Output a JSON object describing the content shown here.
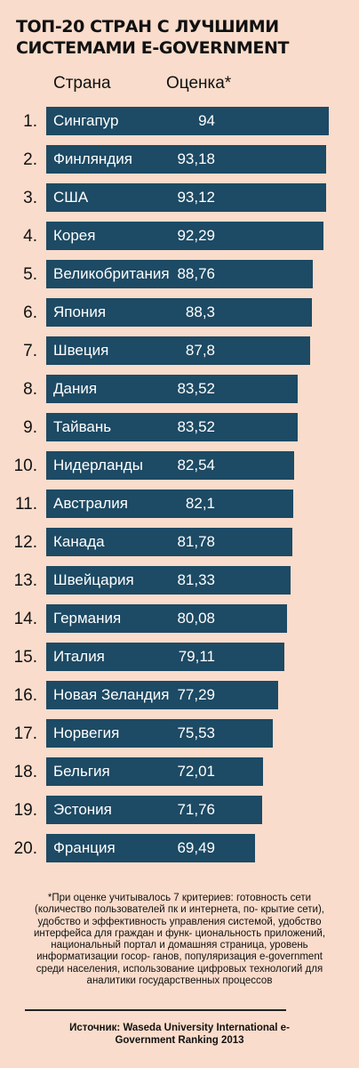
{
  "title": "ТОП-20 СТРАН С ЛУЧШИМИ СИСТЕМАМИ E-GOVERNMENT",
  "col_country": "Страна",
  "col_score": "Оценка*",
  "colors": {
    "background": "#f9dccb",
    "bar": "#1d4a64",
    "bar_text": "#ffffff"
  },
  "chart_data": {
    "type": "bar",
    "orientation": "horizontal",
    "title": "ТОП-20 СТРАН С ЛУЧШИМИ СИСТЕМАМИ E-GOVERNMENT",
    "ranks": [
      "1.",
      "2.",
      "3.",
      "4.",
      "5.",
      "6.",
      "7.",
      "8.",
      "9.",
      "10.",
      "11.",
      "12.",
      "13.",
      "14.",
      "15.",
      "16.",
      "17.",
      "18.",
      "19.",
      "20."
    ],
    "categories": [
      "Сингапур",
      "Финляндия",
      "США",
      "Корея",
      "Великобритания",
      "Япония",
      "Швеция",
      "Дания",
      "Тайвань",
      "Нидерланды",
      "Австралия",
      "Канада",
      "Швейцария",
      "Германия",
      "Италия",
      "Новая Зеландия",
      "Норвегия",
      "Бельгия",
      "Эстония",
      "Франция"
    ],
    "value_labels": [
      "94",
      "93,18",
      "93,12",
      "92,29",
      "88,76",
      "88,3",
      "87,8",
      "83,52",
      "83,52",
      "82,54",
      "82,1",
      "81,78",
      "81,33",
      "80,08",
      "79,11",
      "77,29",
      "75,53",
      "72,01",
      "71,76",
      "69,49"
    ],
    "values": [
      94,
      93.18,
      93.12,
      92.29,
      88.76,
      88.3,
      87.8,
      83.52,
      83.52,
      82.54,
      82.1,
      81.78,
      81.33,
      80.08,
      79.11,
      77.29,
      75.53,
      72.01,
      71.76,
      69.49
    ]
  },
  "footnote": "*При оценке учитывалось 7 критериев: готовность сети (количество пользователей пк и интернета, по- крытие сети), удобство и эффективность управления системой, удобство интерфейса для граждан и функ- циональность приложений, национальный портал и домашняя страница, уровень информатизации госор- ганов, популяризация e-government среди населения, использование цифровых технологий для аналитики государственных процессов",
  "source": "Источник: Waseda University International e-Government Ranking 2013"
}
